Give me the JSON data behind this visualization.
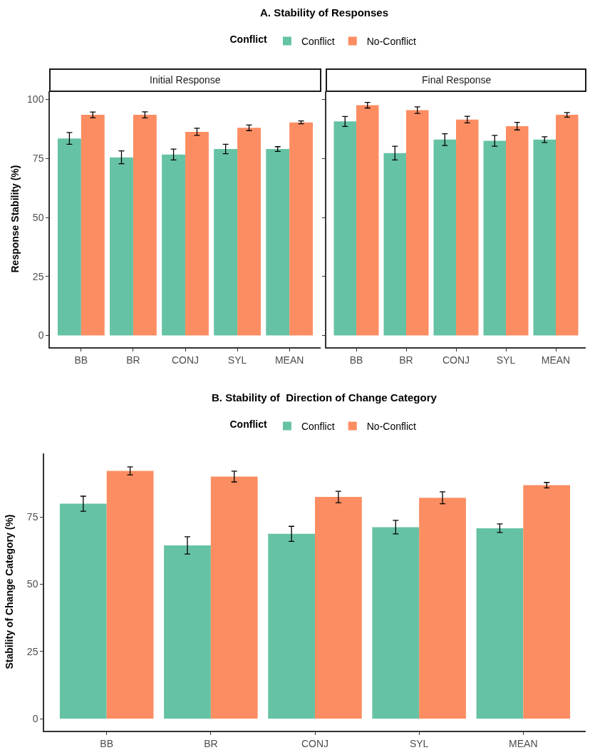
{
  "chart_data": [
    {
      "type": "bar",
      "title": "A. Stability of Responses",
      "subtitle": "Initial Response",
      "legend_title": "Conflict",
      "legend": "top",
      "ylabel": "Response Stability (%)",
      "categories": [
        "BB",
        "BR",
        "CONJ",
        "SYL",
        "MEAN"
      ],
      "ylim": [
        -5,
        103.5
      ],
      "yticks": [
        0,
        25,
        50,
        75,
        100
      ],
      "series": [
        {
          "name": "Conflict",
          "color": "#66c2a5",
          "values": [
            83.5,
            75.5,
            76.7,
            79.0,
            79.0
          ],
          "errors": [
            2.5,
            2.7,
            2.3,
            2.0,
            1.0
          ]
        },
        {
          "name": "No-Conflict",
          "color": "#fc8d62",
          "values": [
            93.5,
            93.5,
            86.3,
            88.0,
            90.3
          ],
          "errors": [
            1.2,
            1.3,
            1.5,
            1.2,
            0.6
          ]
        }
      ]
    },
    {
      "type": "bar",
      "subtitle": "Final Response",
      "tick_labels": "x",
      "categories": [
        "BB",
        "BR",
        "CONJ",
        "SYL",
        "MEAN"
      ],
      "ylim": [
        -5,
        103.5
      ],
      "yticks": [
        0,
        25,
        50,
        75,
        100
      ],
      "series": [
        {
          "color": "#66c2a5",
          "values": [
            90.7,
            77.3,
            83.0,
            82.5,
            83.0
          ],
          "errors": [
            2.1,
            2.9,
            2.5,
            2.3,
            1.2
          ]
        },
        {
          "color": "#fc8d62",
          "values": [
            97.6,
            95.5,
            91.5,
            88.7,
            93.5
          ],
          "errors": [
            1.2,
            1.4,
            1.4,
            1.6,
            1.0
          ]
        }
      ]
    },
    {
      "type": "bar",
      "title": "B. Stability of  Direction of Change Category",
      "legend_title": "Conflict",
      "legend": "top",
      "ylabel": "Stability of Change Category (%)",
      "categories": [
        "BB",
        "BR",
        "CONJ",
        "SYL",
        "MEAN"
      ],
      "ylim": [
        -4.5,
        98.6
      ],
      "yticks": [
        0,
        25,
        50,
        75
      ],
      "series": [
        {
          "name": "Conflict",
          "color": "#66c2a5",
          "values": [
            79.9,
            64.4,
            68.7,
            71.2,
            70.8
          ],
          "errors": [
            2.8,
            3.2,
            2.8,
            2.5,
            1.6
          ]
        },
        {
          "name": "No-Conflict",
          "color": "#fc8d62",
          "values": [
            92.1,
            90.0,
            82.4,
            82.1,
            86.8
          ],
          "errors": [
            1.5,
            2.0,
            2.1,
            2.2,
            1.0
          ]
        }
      ]
    }
  ]
}
